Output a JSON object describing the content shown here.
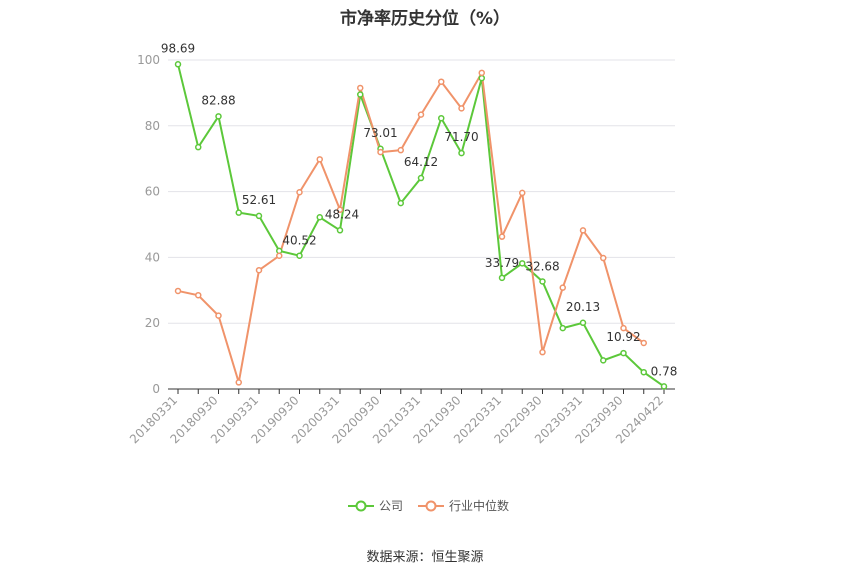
{
  "chart_data": {
    "type": "line",
    "title": "市净率历史分位（%）",
    "source": "数据来源：恒生聚源",
    "x_tick_labels": [
      "20180331",
      "20180930",
      "20190331",
      "20190930",
      "20200331",
      "20200930",
      "20210331",
      "20210930",
      "20220331",
      "20220930",
      "20230331",
      "20230930",
      "20240422"
    ],
    "ylim": [
      0,
      100
    ],
    "y_ticks": [
      0,
      20,
      40,
      60,
      80,
      100
    ],
    "grid": true,
    "legend_position": "bottom",
    "series": [
      {
        "name": "公司",
        "color": "#5cc83a",
        "values": [
          98.69,
          73.5,
          82.88,
          53.6,
          52.61,
          42.0,
          40.52,
          52.2,
          48.24,
          89.5,
          73.01,
          56.5,
          64.12,
          82.3,
          71.7,
          94.5,
          33.79,
          38.2,
          32.68,
          18.5,
          20.13,
          8.7,
          10.92,
          5.1,
          0.78
        ],
        "labels": {
          "0": "98.69",
          "2": "82.88",
          "4": "52.61",
          "6": "40.52",
          "8": "48.24",
          "10": "73.01",
          "12": "64.12",
          "14": "71.70",
          "16": "33.79",
          "18": "32.68",
          "20": "20.13",
          "22": "10.92",
          "24": "0.78"
        }
      },
      {
        "name": "行业中位数",
        "color": "#f0936a",
        "values": [
          29.8,
          28.5,
          22.3,
          2.0,
          36.1,
          40.5,
          59.8,
          69.8,
          54.5,
          91.5,
          72.0,
          72.6,
          83.4,
          93.4,
          85.3,
          96.1,
          46.3,
          59.6,
          11.2,
          30.8,
          48.2,
          39.8,
          18.5,
          14.0,
          null
        ]
      }
    ]
  }
}
